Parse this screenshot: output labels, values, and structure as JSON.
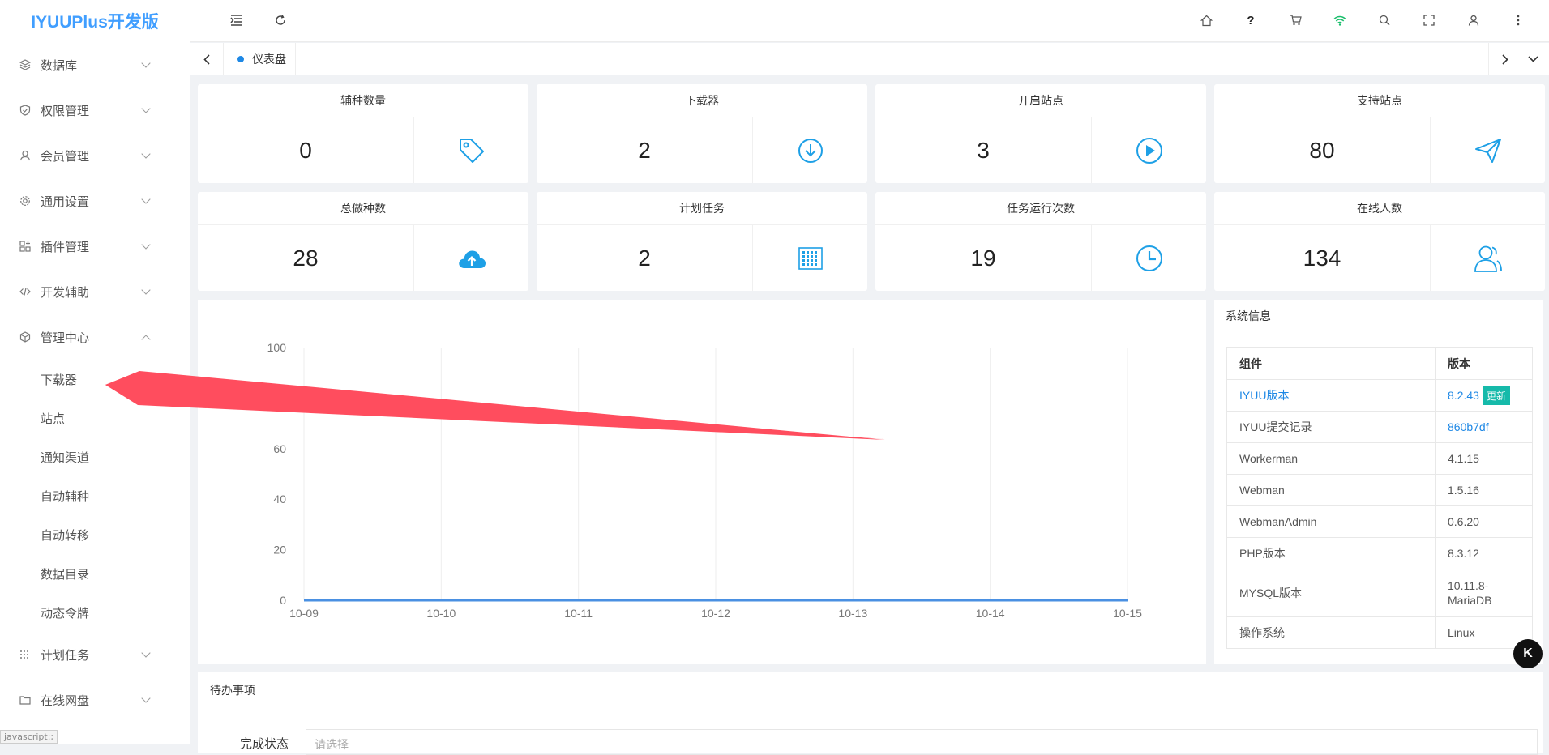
{
  "app": {
    "title": "IYUUPlus开发版"
  },
  "sidebar": {
    "menus": [
      {
        "id": "database",
        "label": "数据库",
        "icon": "layers-icon",
        "expanded": false
      },
      {
        "id": "permissions",
        "label": "权限管理",
        "icon": "shield-icon",
        "expanded": false
      },
      {
        "id": "members",
        "label": "会员管理",
        "icon": "user-icon",
        "expanded": false
      },
      {
        "id": "settings",
        "label": "通用设置",
        "icon": "gear-icon",
        "expanded": false
      },
      {
        "id": "plugins",
        "label": "插件管理",
        "icon": "plugin-icon",
        "expanded": false
      },
      {
        "id": "devtools",
        "label": "开发辅助",
        "icon": "code-icon",
        "expanded": false
      },
      {
        "id": "admin",
        "label": "管理中心",
        "icon": "cube-icon",
        "expanded": true
      },
      {
        "id": "tasks",
        "label": "计划任务",
        "icon": "grid-icon",
        "expanded": false
      },
      {
        "id": "netdisk",
        "label": "在线网盘",
        "icon": "folder-icon",
        "expanded": false
      }
    ],
    "admin_children": [
      "下载器",
      "站点",
      "通知渠道",
      "自动辅种",
      "自动转移",
      "数据目录",
      "动态令牌"
    ]
  },
  "statusbar": {
    "text": "javascript:;"
  },
  "tabs": {
    "active": "仪表盘"
  },
  "stats": [
    {
      "title": "辅种数量",
      "value": "0",
      "icon": "tag-icon"
    },
    {
      "title": "下载器",
      "value": "2",
      "icon": "download-circle-icon"
    },
    {
      "title": "开启站点",
      "value": "3",
      "icon": "play-circle-icon"
    },
    {
      "title": "支持站点",
      "value": "80",
      "icon": "paper-plane-icon"
    },
    {
      "title": "总做种数",
      "value": "28",
      "icon": "cloud-upload-icon"
    },
    {
      "title": "计划任务",
      "value": "2",
      "icon": "calendar-icon"
    },
    {
      "title": "任务运行次数",
      "value": "19",
      "icon": "clock-icon"
    },
    {
      "title": "在线人数",
      "value": "134",
      "icon": "users-icon"
    }
  ],
  "chart_data": {
    "type": "line",
    "x": [
      "10-09",
      "10-10",
      "10-11",
      "10-12",
      "10-13",
      "10-14",
      "10-15"
    ],
    "series": [
      {
        "values": [
          0,
          0,
          0,
          0,
          0,
          0,
          0
        ],
        "color": "#4a90e2"
      }
    ],
    "yticks": [
      "0",
      "20",
      "40",
      "60",
      "100"
    ],
    "ylim": [
      0,
      100
    ],
    "grid": true,
    "title": "",
    "xlabel": "",
    "ylabel": ""
  },
  "system": {
    "title": "系统信息",
    "headers": [
      "组件",
      "版本"
    ],
    "rows": [
      {
        "name": "IYUU版本",
        "value": "8.2.43",
        "badge": "更新",
        "link": true
      },
      {
        "name": "IYUU提交记录",
        "value": "860b7df",
        "valueLink": true
      },
      {
        "name": "Workerman",
        "value": "4.1.15"
      },
      {
        "name": "Webman",
        "value": "1.5.16"
      },
      {
        "name": "WebmanAdmin",
        "value": "0.6.20"
      },
      {
        "name": "PHP版本",
        "value": "8.3.12"
      },
      {
        "name": "MYSQL版本",
        "value": "10.11.8-MariaDB"
      },
      {
        "name": "操作系统",
        "value": "Linux"
      }
    ]
  },
  "todo": {
    "title": "待办事项",
    "label": "完成状态",
    "placeholder": "请选择"
  },
  "floating": {
    "label": "K"
  },
  "colors": {
    "accent": "#409eff",
    "icon": "#1ea0e6",
    "arrow": "#ff4d5e"
  }
}
